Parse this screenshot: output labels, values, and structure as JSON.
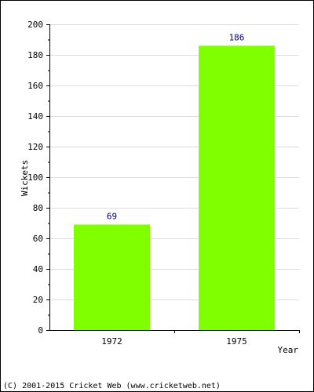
{
  "chart_data": {
    "type": "bar",
    "title": "",
    "xlabel": "Year",
    "ylabel": "Wickets",
    "categories": [
      "1972",
      "1975"
    ],
    "values": [
      69,
      186
    ],
    "ylim": [
      0,
      200
    ],
    "yticks": [
      0,
      20,
      40,
      60,
      80,
      100,
      120,
      140,
      160,
      180,
      200
    ],
    "grid": true,
    "bar_color": "#80ff00",
    "label_color": "#00007f"
  },
  "footer": {
    "copyright": "(C) 2001-2015 Cricket Web (www.cricketweb.net)"
  }
}
